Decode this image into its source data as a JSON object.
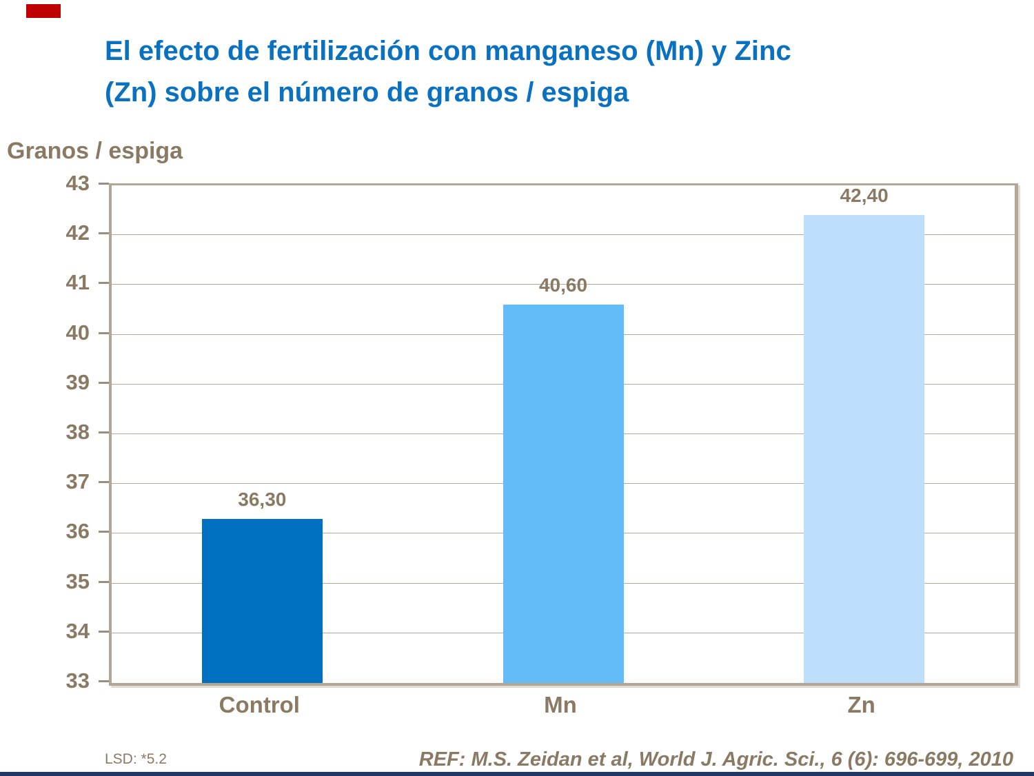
{
  "decorations": {
    "top_left_accent_color": "#C00000",
    "bottom_bar_color": "#1F3864",
    "frame_border_color": "#B2A697",
    "grid_color": "#B3A99B",
    "tick_color": "#9A8F7F",
    "text_brown": "#8A7963",
    "title_color": "#0A71C1",
    "background": "#FFFFFF"
  },
  "header": {
    "title_line1": "El efecto de fertilización con manganeso (Mn) y Zinc",
    "title_line2": "(Zn) sobre el número de granos / espiga"
  },
  "chart_data": {
    "type": "bar",
    "title": "El efecto de fertilización con manganeso (Mn) y Zinc (Zn) sobre el número de granos / espiga",
    "ylabel": "Granos / espiga",
    "xlabel": "",
    "categories": [
      "Control",
      "Mn",
      "Zn"
    ],
    "values": [
      36.3,
      40.6,
      42.4
    ],
    "value_labels": [
      "36,30",
      "40,60",
      "42,40"
    ],
    "bar_colors": [
      "#0070C0",
      "#63BCF7",
      "#BDDFFB"
    ],
    "ylim": [
      33,
      43
    ],
    "ytick_step": 1,
    "ytick_labels": [
      "33",
      "34",
      "35",
      "36",
      "37",
      "38",
      "39",
      "40",
      "41",
      "42",
      "43"
    ],
    "grid": true,
    "legend": false
  },
  "footer": {
    "lsd": "LSD: *5.2",
    "ref": "REF: M.S. Zeidan et al, World J. Agric. Sci., 6 (6): 696-699, 2010"
  }
}
